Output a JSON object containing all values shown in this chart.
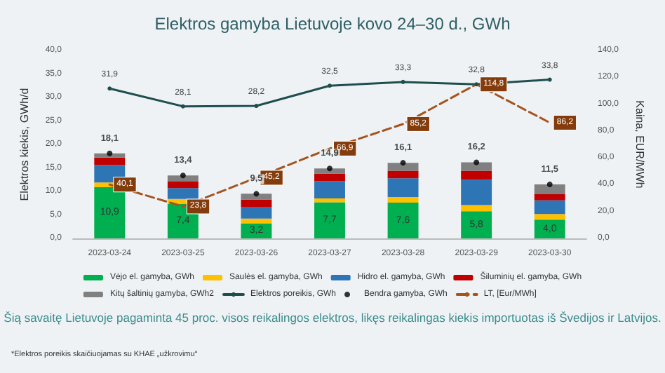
{
  "chart_data": {
    "type": "bar",
    "title": "Elektros gamyba Lietuvoje kovo 24–30 d., GWh",
    "ylabel": "Elektros kiekis, GWh/d",
    "y2label": "Kaina, EUR/MWh",
    "categories": [
      "2023-03-24",
      "2023-03-25",
      "2023-03-26",
      "2023-03-27",
      "2023-03-28",
      "2023-03-29",
      "2023-03-30"
    ],
    "stacked": true,
    "legend": "bottom",
    "series": [
      {
        "name": "Vėjo el. gamyba, GWh",
        "color": "#00b050",
        "values": [
          10.9,
          7.4,
          3.2,
          7.7,
          7.6,
          5.8,
          4.0
        ],
        "value_labels": [
          "10,9",
          "7,4",
          "3,2",
          "7,7",
          "7,6",
          "5,8",
          "4,0"
        ]
      },
      {
        "name": "Saulės el. gamyba, GWh",
        "color": "#ffc000",
        "values": [
          1.0,
          1.0,
          1.0,
          0.8,
          1.2,
          1.3,
          1.2
        ]
      },
      {
        "name": "Hidro el. gamyba, GWh",
        "color": "#2e75b6",
        "values": [
          3.7,
          2.3,
          2.5,
          3.7,
          4.0,
          5.4,
          2.9
        ]
      },
      {
        "name": "Šiluminių el. gamyba, GWh",
        "color": "#c00000",
        "values": [
          1.6,
          1.4,
          1.6,
          1.6,
          1.6,
          1.9,
          1.3
        ]
      },
      {
        "name": "Kitų šaltinių gamyba, GWh2",
        "color": "#808080",
        "values": [
          0.9,
          1.3,
          1.2,
          1.1,
          1.7,
          1.8,
          2.1
        ]
      },
      {
        "name": "Elektros poreikis, GWh",
        "type": "line",
        "color": "#1f4e4f",
        "marker": "circle",
        "line_style": "solid",
        "values": [
          31.9,
          28.1,
          28.2,
          32.5,
          33.3,
          32.8,
          33.8
        ],
        "value_labels": [
          "31,9",
          "28,1",
          "28,2",
          "32,5",
          "33,3",
          "32,8",
          "33,8"
        ]
      },
      {
        "name": "Bendra gamyba, GWh",
        "type": "scatter",
        "color": "#000000",
        "marker": "circle",
        "values": [
          18.1,
          13.4,
          9.5,
          14.9,
          16.1,
          16.2,
          11.5
        ],
        "value_labels": [
          "18,1",
          "13,4",
          "9,5",
          "14,9",
          "16,1",
          "16,2",
          "11,5"
        ]
      },
      {
        "name": "LT, [Eur/MWh]",
        "type": "line",
        "axis": "y2",
        "color": "#a5541e",
        "marker": "none",
        "line_style": "dashed",
        "values": [
          40.1,
          23.8,
          45.2,
          66.9,
          85.2,
          114.8,
          86.2
        ],
        "value_labels": [
          "40,1",
          "23,8",
          "45,2",
          "66,9",
          "85,2",
          "114,8",
          "86,2"
        ]
      }
    ],
    "ylim": [
      0,
      40
    ],
    "yticks": [
      {
        "value": 0,
        "label": "0,0"
      },
      {
        "value": 5,
        "label": "5,0"
      },
      {
        "value": 10,
        "label": "10,0"
      },
      {
        "value": 15,
        "label": "15,0"
      },
      {
        "value": 20,
        "label": "20,0"
      },
      {
        "value": 25,
        "label": "25,0"
      },
      {
        "value": 30,
        "label": "30,0"
      },
      {
        "value": 35,
        "label": "35,0"
      },
      {
        "value": 40,
        "label": "40,0"
      }
    ],
    "y2lim": [
      0,
      140
    ],
    "y2ticks": [
      {
        "value": 0,
        "label": "0,0"
      },
      {
        "value": 20,
        "label": "20,0"
      },
      {
        "value": 40,
        "label": "40,0"
      },
      {
        "value": 60,
        "label": "60,0"
      },
      {
        "value": 80,
        "label": "80,0"
      },
      {
        "value": 100,
        "label": "100,0"
      },
      {
        "value": 120,
        "label": "120,0"
      },
      {
        "value": 140,
        "label": "140,0"
      }
    ],
    "annotations": [
      "Šią savaitę Lietuvoje pagaminta 45 proc. visos reikalingos elektros, likęs reikalingas kiekis importuotas iš Švedijos ir Latvijos.",
      "*Elektros poreikis skaičiuojamas su KHAE „užkrovimu“"
    ]
  }
}
